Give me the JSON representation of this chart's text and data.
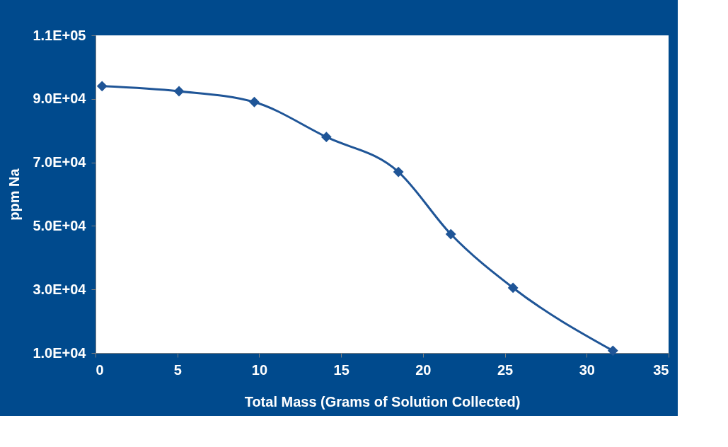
{
  "chart_data": {
    "type": "line",
    "xlabel": "Total Mass (Grams of Solution Collected)",
    "ylabel": "ppm Na",
    "x": [
      0.4,
      5.1,
      9.7,
      14.1,
      18.5,
      21.7,
      25.5,
      31.6
    ],
    "series": [
      {
        "color": "#1f5597",
        "values": [
          94000,
          92400,
          89000,
          78000,
          67000,
          47400,
          30500,
          10700
        ]
      }
    ],
    "xlim": [
      0,
      35
    ],
    "xticks": [
      0,
      5,
      10,
      15,
      20,
      25,
      30,
      35
    ],
    "ylim": [
      10000,
      110000
    ],
    "yticks": [
      {
        "value": 10000,
        "label": "1.0E+04"
      },
      {
        "value": 30000,
        "label": "3.0E+04"
      },
      {
        "value": 50000,
        "label": "5.0E+04"
      },
      {
        "value": 70000,
        "label": "7.0E+04"
      },
      {
        "value": 90000,
        "label": "9.0E+04"
      },
      {
        "value": 110000,
        "label": "1.1E+05"
      }
    ],
    "grid": false,
    "marker": "diamond",
    "line_style": "solid"
  }
}
